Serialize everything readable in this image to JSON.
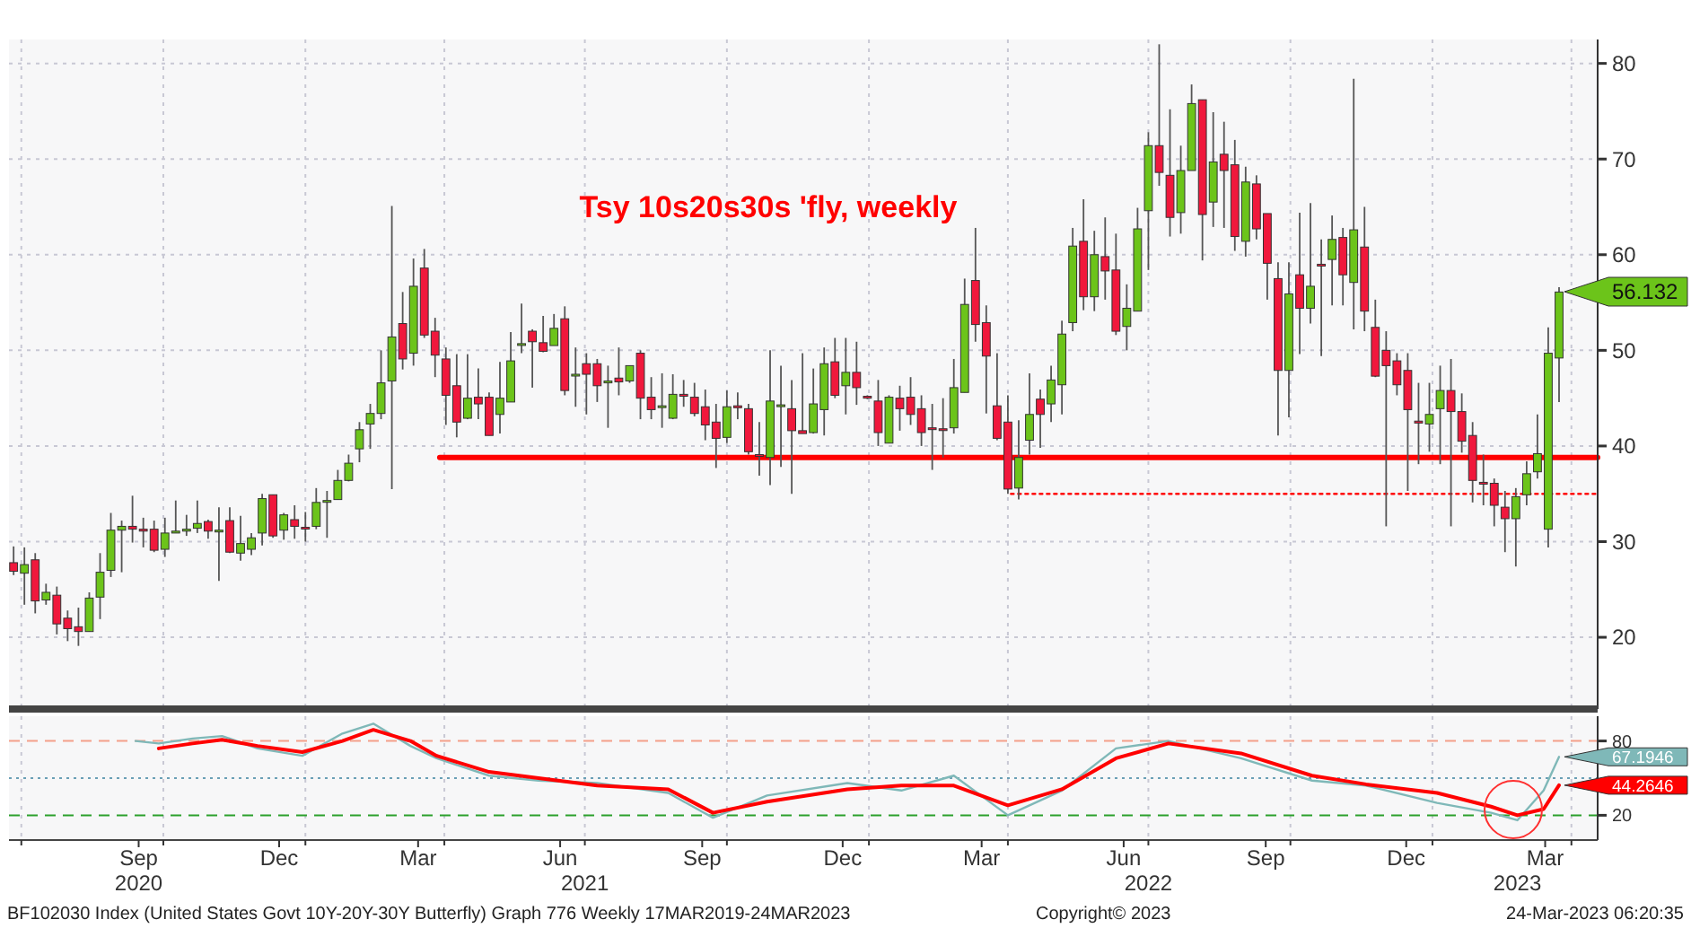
{
  "chart_data": [
    {
      "type": "candlestick",
      "title": "Tsy 10s20s30s 'fly, weekly",
      "x": [
        "2020-06-26",
        "2020-07-03",
        "2020-07-10",
        "2020-07-17",
        "2020-07-24",
        "2020-07-31",
        "2020-08-07",
        "2020-08-14",
        "2020-08-21",
        "2020-08-28",
        "2020-09-04",
        "2020-09-11",
        "2020-09-18",
        "2020-09-25",
        "2020-10-02",
        "2020-10-09",
        "2020-10-16",
        "2020-10-23",
        "2020-10-30",
        "2020-11-06",
        "2020-11-13",
        "2020-11-20",
        "2020-11-27",
        "2020-12-04",
        "2020-12-11",
        "2020-12-18",
        "2020-12-25",
        "2021-01-01",
        "2021-01-08",
        "2021-01-15",
        "2021-01-22",
        "2021-01-29",
        "2021-02-05",
        "2021-02-12",
        "2021-02-19",
        "2021-02-26",
        "2021-03-05",
        "2021-03-12",
        "2021-03-19",
        "2021-03-26",
        "2021-04-02",
        "2021-04-09",
        "2021-04-16",
        "2021-04-23",
        "2021-04-30",
        "2021-05-07",
        "2021-05-14",
        "2021-05-21",
        "2021-05-28",
        "2021-06-04",
        "2021-06-11",
        "2021-06-18",
        "2021-06-25",
        "2021-07-02",
        "2021-07-09",
        "2021-07-16",
        "2021-07-23",
        "2021-07-30",
        "2021-08-06",
        "2021-08-13",
        "2021-08-20",
        "2021-08-27",
        "2021-09-03",
        "2021-09-10",
        "2021-09-17",
        "2021-09-24",
        "2021-10-01",
        "2021-10-08",
        "2021-10-15",
        "2021-10-22",
        "2021-10-29",
        "2021-11-05",
        "2021-11-12",
        "2021-11-19",
        "2021-11-26",
        "2021-12-03",
        "2021-12-10",
        "2021-12-17",
        "2021-12-24",
        "2021-12-31",
        "2022-01-07",
        "2022-01-14",
        "2022-01-21",
        "2022-01-28",
        "2022-02-04",
        "2022-02-11",
        "2022-02-18",
        "2022-02-25",
        "2022-03-04",
        "2022-03-11",
        "2022-03-18",
        "2022-03-25",
        "2022-04-01",
        "2022-04-08",
        "2022-04-15",
        "2022-04-22",
        "2022-04-29",
        "2022-05-06",
        "2022-05-13",
        "2022-05-20",
        "2022-05-27",
        "2022-06-03",
        "2022-06-10",
        "2022-06-17",
        "2022-06-24",
        "2022-07-01",
        "2022-07-08",
        "2022-07-15",
        "2022-07-22",
        "2022-07-29",
        "2022-08-05",
        "2022-08-12",
        "2022-08-19",
        "2022-08-26",
        "2022-09-02",
        "2022-09-09",
        "2022-09-16",
        "2022-09-23",
        "2022-09-30",
        "2022-10-07",
        "2022-10-14",
        "2022-10-21",
        "2022-10-28",
        "2022-11-04",
        "2022-11-11",
        "2022-11-18",
        "2022-11-25",
        "2022-12-02",
        "2022-12-09",
        "2022-12-16",
        "2022-12-23",
        "2022-12-30",
        "2023-01-06",
        "2023-01-13",
        "2023-01-20",
        "2023-01-27",
        "2023-02-03",
        "2023-02-10",
        "2023-02-17",
        "2023-02-24",
        "2023-03-03",
        "2023-03-10",
        "2023-03-17",
        "2023-03-24"
      ],
      "ohlc": [
        [
          27.8,
          29.5,
          26.5,
          26.9
        ],
        [
          26.7,
          29.4,
          23.4,
          27.6
        ],
        [
          28.1,
          28.8,
          22.5,
          23.8
        ],
        [
          23.9,
          25.6,
          23.4,
          24.7
        ],
        [
          24.4,
          25.3,
          20.3,
          21.4
        ],
        [
          22.0,
          22.8,
          19.6,
          20.9
        ],
        [
          21.1,
          23.1,
          19.1,
          20.6
        ],
        [
          20.6,
          24.7,
          20.6,
          24.1
        ],
        [
          24.2,
          28.8,
          21.9,
          26.8
        ],
        [
          27.0,
          33.0,
          26.3,
          31.2
        ],
        [
          31.2,
          32.2,
          26.8,
          31.6
        ],
        [
          31.6,
          34.8,
          29.9,
          31.3
        ],
        [
          31.3,
          32.5,
          29.4,
          31.1
        ],
        [
          31.3,
          32.2,
          28.9,
          29.1
        ],
        [
          29.2,
          32.5,
          28.4,
          30.9
        ],
        [
          30.9,
          34.3,
          30.9,
          31.1
        ],
        [
          31.1,
          32.8,
          30.6,
          31.3
        ],
        [
          31.4,
          34.3,
          30.9,
          31.9
        ],
        [
          32.1,
          32.3,
          30.3,
          31.1
        ],
        [
          31.1,
          33.6,
          25.9,
          31.2
        ],
        [
          32.2,
          33.6,
          28.8,
          28.9
        ],
        [
          28.8,
          32.7,
          28.0,
          29.8
        ],
        [
          29.2,
          30.9,
          28.6,
          30.4
        ],
        [
          30.9,
          35.0,
          29.6,
          34.5
        ],
        [
          34.9,
          34.9,
          30.4,
          30.6
        ],
        [
          31.2,
          33.0,
          30.2,
          32.8
        ],
        [
          32.3,
          33.8,
          30.3,
          31.6
        ],
        [
          31.5,
          33.1,
          30.0,
          31.4
        ],
        [
          31.6,
          35.6,
          31.3,
          34.1
        ],
        [
          34.2,
          35.3,
          30.4,
          34.3
        ],
        [
          34.4,
          37.5,
          34.4,
          36.4
        ],
        [
          36.4,
          39.1,
          36.3,
          38.2
        ],
        [
          39.7,
          42.5,
          38.3,
          41.7
        ],
        [
          42.3,
          44.4,
          39.7,
          43.4
        ],
        [
          43.4,
          50.0,
          42.8,
          46.6
        ],
        [
          46.8,
          65.1,
          35.5,
          51.4
        ],
        [
          52.8,
          56.1,
          48.0,
          49.1
        ],
        [
          49.7,
          59.6,
          48.4,
          56.7
        ],
        [
          58.6,
          60.6,
          51.3,
          51.6
        ],
        [
          52.0,
          53.4,
          47.2,
          49.5
        ],
        [
          49.1,
          50.3,
          42.2,
          45.3
        ],
        [
          46.3,
          49.6,
          40.9,
          42.5
        ],
        [
          42.9,
          49.6,
          42.8,
          45.0
        ],
        [
          45.1,
          48.1,
          42.8,
          44.4
        ],
        [
          45.1,
          45.6,
          41.1,
          41.1
        ],
        [
          43.3,
          48.8,
          41.3,
          45.0
        ],
        [
          44.6,
          51.9,
          44.6,
          48.9
        ],
        [
          50.6,
          54.9,
          49.7,
          50.7
        ],
        [
          52.0,
          52.2,
          46.1,
          50.9
        ],
        [
          50.8,
          53.6,
          49.8,
          49.9
        ],
        [
          50.5,
          53.8,
          50.5,
          52.3
        ],
        [
          53.3,
          54.6,
          45.3,
          45.8
        ],
        [
          47.4,
          50.3,
          44.1,
          47.5
        ],
        [
          48.6,
          49.7,
          43.3,
          47.5
        ],
        [
          48.6,
          49.1,
          44.6,
          46.3
        ],
        [
          46.6,
          48.4,
          41.9,
          46.8
        ],
        [
          47.1,
          50.3,
          45.3,
          46.7
        ],
        [
          46.8,
          48.4,
          46.6,
          48.4
        ],
        [
          49.7,
          50.0,
          42.8,
          45.0
        ],
        [
          45.1,
          47.2,
          42.8,
          43.8
        ],
        [
          44.1,
          47.6,
          41.9,
          44.2
        ],
        [
          42.9,
          47.5,
          42.8,
          45.4
        ],
        [
          45.4,
          46.9,
          44.1,
          45.2
        ],
        [
          45.1,
          46.6,
          43.1,
          43.4
        ],
        [
          44.1,
          45.9,
          40.6,
          42.2
        ],
        [
          42.5,
          44.4,
          37.7,
          40.8
        ],
        [
          40.9,
          45.8,
          40.3,
          44.1
        ],
        [
          44.2,
          45.6,
          42.8,
          44.0
        ],
        [
          43.9,
          44.4,
          39.1,
          39.4
        ],
        [
          39.1,
          42.5,
          36.9,
          39.0
        ],
        [
          38.8,
          50.0,
          35.9,
          44.7
        ],
        [
          44.2,
          48.4,
          37.8,
          44.3
        ],
        [
          43.9,
          46.9,
          35.0,
          41.6
        ],
        [
          41.6,
          49.7,
          41.3,
          41.3
        ],
        [
          41.4,
          48.1,
          41.3,
          44.4
        ],
        [
          43.8,
          50.3,
          41.1,
          48.6
        ],
        [
          48.8,
          51.3,
          45.0,
          45.3
        ],
        [
          46.3,
          51.3,
          43.3,
          47.7
        ],
        [
          47.7,
          50.9,
          44.3,
          46.1
        ],
        [
          45.2,
          45.3,
          44.9,
          45.0
        ],
        [
          44.7,
          46.9,
          40.0,
          41.4
        ],
        [
          40.3,
          45.3,
          40.3,
          45.1
        ],
        [
          45.0,
          46.3,
          41.6,
          43.9
        ],
        [
          45.1,
          47.2,
          42.2,
          43.3
        ],
        [
          43.9,
          45.3,
          40.0,
          41.4
        ],
        [
          41.9,
          44.4,
          37.5,
          41.8
        ],
        [
          41.8,
          45.0,
          38.8,
          41.7
        ],
        [
          41.9,
          49.1,
          41.3,
          46.1
        ],
        [
          45.6,
          57.5,
          45.6,
          54.8
        ],
        [
          57.3,
          62.8,
          50.9,
          52.7
        ],
        [
          52.9,
          54.7,
          43.4,
          49.4
        ],
        [
          44.2,
          49.7,
          40.6,
          40.8
        ],
        [
          42.5,
          45.3,
          35.0,
          35.5
        ],
        [
          35.6,
          42.7,
          34.4,
          38.8
        ],
        [
          40.6,
          47.6,
          39.1,
          43.3
        ],
        [
          44.9,
          45.9,
          39.8,
          43.3
        ],
        [
          44.4,
          48.4,
          42.5,
          46.9
        ],
        [
          46.4,
          53.1,
          43.3,
          51.7
        ],
        [
          52.9,
          62.8,
          52.0,
          60.9
        ],
        [
          61.4,
          65.8,
          54.2,
          55.6
        ],
        [
          55.6,
          62.5,
          54.1,
          60.0
        ],
        [
          59.8,
          63.9,
          55.3,
          58.3
        ],
        [
          58.4,
          62.2,
          51.6,
          52.0
        ],
        [
          52.5,
          56.9,
          50.0,
          54.4
        ],
        [
          54.1,
          64.9,
          54.1,
          62.7
        ],
        [
          64.6,
          72.8,
          58.4,
          71.4
        ],
        [
          71.4,
          82.0,
          67.2,
          68.6
        ],
        [
          68.3,
          75.2,
          61.9,
          63.9
        ],
        [
          64.4,
          71.4,
          62.2,
          68.8
        ],
        [
          68.8,
          77.8,
          68.8,
          75.8
        ],
        [
          76.2,
          76.2,
          59.4,
          64.2
        ],
        [
          65.5,
          74.9,
          62.9,
          69.7
        ],
        [
          70.5,
          73.9,
          62.8,
          68.8
        ],
        [
          69.4,
          72.0,
          60.4,
          61.9
        ],
        [
          61.4,
          69.2,
          59.8,
          67.6
        ],
        [
          67.4,
          68.3,
          61.6,
          62.7
        ],
        [
          64.3,
          64.3,
          55.3,
          59.1
        ],
        [
          57.5,
          59.2,
          41.1,
          47.9
        ],
        [
          47.9,
          59.2,
          43.0,
          55.9
        ],
        [
          57.9,
          64.4,
          49.6,
          54.4
        ],
        [
          54.4,
          65.4,
          52.8,
          56.7
        ],
        [
          59.0,
          61.6,
          49.4,
          58.9
        ],
        [
          59.5,
          64.1,
          54.7,
          61.6
        ],
        [
          61.8,
          62.8,
          54.7,
          57.9
        ],
        [
          57.1,
          78.4,
          52.2,
          62.6
        ],
        [
          60.8,
          65.0,
          52.0,
          54.1
        ],
        [
          52.4,
          55.3,
          47.2,
          47.3
        ],
        [
          50.0,
          52.0,
          31.6,
          48.4
        ],
        [
          48.9,
          49.7,
          45.3,
          46.4
        ],
        [
          47.9,
          49.7,
          35.3,
          43.8
        ],
        [
          42.6,
          46.6,
          38.1,
          42.4
        ],
        [
          42.3,
          46.6,
          39.4,
          43.3
        ],
        [
          43.9,
          48.4,
          38.1,
          45.8
        ],
        [
          45.8,
          49.1,
          31.6,
          43.6
        ],
        [
          43.6,
          45.5,
          39.3,
          40.5
        ],
        [
          41.1,
          42.5,
          34.1,
          36.4
        ],
        [
          36.2,
          39.1,
          33.8,
          36.1
        ],
        [
          36.1,
          36.6,
          31.6,
          33.8
        ],
        [
          33.6,
          35.3,
          28.9,
          32.4
        ],
        [
          32.4,
          35.6,
          27.4,
          34.7
        ],
        [
          34.9,
          38.4,
          33.8,
          37.1
        ],
        [
          37.3,
          43.3,
          36.6,
          39.2
        ],
        [
          31.3,
          52.4,
          29.4,
          49.7
        ],
        [
          49.2,
          56.6,
          44.6,
          56.1
        ]
      ],
      "series": [
        {
          "type": "line",
          "color": "#ff0000",
          "x": [
            "2021-03-29",
            "2023-04-18"
          ],
          "values": [
            38.8,
            38.8
          ]
        },
        {
          "type": "line",
          "color": "#ff0000",
          "line_style": "dotted",
          "x": [
            "2022-04-03",
            "2023-04-18"
          ],
          "values": [
            35,
            35
          ]
        }
      ],
      "xlim": [
        "2020-06-23",
        "2023-04-18"
      ],
      "xticks": [
        {
          "value": "2020-07-01",
          "label": null
        },
        {
          "value": "2020-10-01",
          "label": null
        },
        {
          "value": "2021-01-01",
          "label": null
        },
        {
          "value": "2021-04-01",
          "label": null
        },
        {
          "value": "2021-07-01",
          "label": null
        },
        {
          "value": "2021-10-01",
          "label": null
        },
        {
          "value": "2022-01-01",
          "label": null
        },
        {
          "value": "2022-04-01",
          "label": null
        },
        {
          "value": "2022-07-01",
          "label": null
        },
        {
          "value": "2022-10-01",
          "label": null
        },
        {
          "value": "2023-01-01",
          "label": null
        },
        {
          "value": "2023-04-01",
          "label": null
        }
      ],
      "ylim": [
        12.5,
        82.5
      ],
      "yticks": [
        20,
        30,
        40,
        50,
        60,
        70,
        80
      ],
      "grid": true,
      "tick_labels": "y",
      "annotations": [
        {
          "text": "56.132",
          "x": "2023-03-24",
          "y": 56.132
        }
      ]
    },
    {
      "type": "line",
      "x": [
        "2020-09-13",
        "2020-09-28",
        "2020-10-20",
        "2020-11-08",
        "2020-12-01",
        "2020-12-30",
        "2021-01-25",
        "2021-02-14",
        "2021-03-10",
        "2021-03-27",
        "2021-04-30",
        "2021-06-01",
        "2021-07-09",
        "2021-08-24",
        "2021-09-22",
        "2021-10-27",
        "2021-12-18",
        "2022-01-22",
        "2022-02-25",
        "2022-04-01",
        "2022-05-06",
        "2022-06-10",
        "2022-07-14",
        "2022-08-30",
        "2022-10-15",
        "2022-11-19",
        "2023-01-04",
        "2023-02-08",
        "2023-02-25",
        "2023-03-14",
        "2023-03-24"
      ],
      "series": [
        {
          "color": "#7fb8b8",
          "values": [
            80,
            78,
            82,
            84,
            74,
            68,
            86,
            94,
            76,
            66,
            52,
            48,
            46,
            38,
            18,
            36,
            46,
            40,
            52,
            20,
            40,
            74,
            80,
            66,
            48,
            44,
            30,
            22,
            16,
            40,
            67.2
          ]
        },
        {
          "color": "#ff0000",
          "values": [
            null,
            74,
            78,
            81,
            76,
            71,
            80,
            89,
            80,
            68,
            55,
            50,
            44,
            41,
            22,
            31,
            41,
            44,
            44,
            28,
            41,
            66,
            78,
            70,
            52,
            45,
            38,
            27,
            20,
            25,
            44.3
          ]
        }
      ],
      "ref_lines": [
        {
          "axis": "y",
          "value": 80,
          "color": "#f4a08a",
          "line_style": "dashed"
        },
        {
          "axis": "y",
          "value": 50,
          "color": "#6a9fb5",
          "line_style": "dotted"
        },
        {
          "axis": "y",
          "value": 20,
          "color": "#2ca02c",
          "line_style": "dashed"
        }
      ],
      "xlim": [
        "2020-06-23",
        "2023-04-18"
      ],
      "xticks": [
        {
          "value": "2020-07-01",
          "label": null
        },
        {
          "value": "2020-09-15",
          "label": "Sep"
        },
        {
          "value": "2020-10-01",
          "label": null
        },
        {
          "value": "2020-12-15",
          "label": "Dec"
        },
        {
          "value": "2021-01-01",
          "label": null
        },
        {
          "value": "2021-03-15",
          "label": "Mar"
        },
        {
          "value": "2021-04-01",
          "label": null
        },
        {
          "value": "2021-06-15",
          "label": "Jun"
        },
        {
          "value": "2021-07-01",
          "label": null
        },
        {
          "value": "2021-09-15",
          "label": "Sep"
        },
        {
          "value": "2021-10-01",
          "label": null
        },
        {
          "value": "2021-12-15",
          "label": "Dec"
        },
        {
          "value": "2022-01-01",
          "label": null
        },
        {
          "value": "2022-03-15",
          "label": "Mar"
        },
        {
          "value": "2022-04-01",
          "label": null
        },
        {
          "value": "2022-06-15",
          "label": "Jun"
        },
        {
          "value": "2022-07-01",
          "label": null
        },
        {
          "value": "2022-09-15",
          "label": "Sep"
        },
        {
          "value": "2022-10-01",
          "label": null
        },
        {
          "value": "2022-12-15",
          "label": "Dec"
        },
        {
          "value": "2023-01-01",
          "label": null
        },
        {
          "value": "2023-03-15",
          "label": "Mar"
        },
        {
          "value": "2023-04-01",
          "label": null
        }
      ],
      "x2lim": [
        "2020-06-23",
        "2023-04-18"
      ],
      "x2ticks": [
        {
          "value": "2020-09-15",
          "label": "2020"
        },
        {
          "value": "2021-07-01",
          "label": "2021"
        },
        {
          "value": "2022-07-01",
          "label": "2022"
        },
        {
          "value": "2023-02-25",
          "label": "2023"
        }
      ],
      "ylim": [
        0,
        100
      ],
      "yticks": [
        20,
        80
      ],
      "grid": "x",
      "annotations": [
        {
          "text": "67.1946",
          "x": "2023-03-24",
          "y": 67.1946
        },
        {
          "text": "44.2646",
          "x": "2023-03-24",
          "y": 44.2646
        },
        "BF102030 Index (United States Govt 10Y-20Y-30Y Butterfly) Graph 776   Weekly 17MAR2019-24MAR2023",
        "Copyright© 2023",
        "24-Mar-2023 06:20:35"
      ]
    }
  ]
}
